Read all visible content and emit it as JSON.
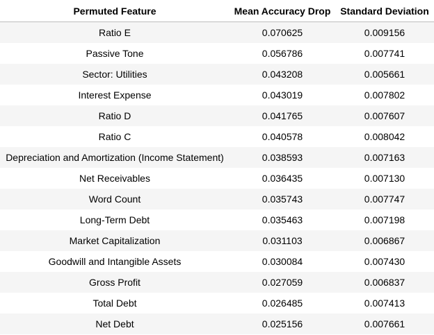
{
  "table": {
    "headers": [
      "Permuted Feature",
      "Mean Accuracy Drop",
      "Standard Deviation"
    ],
    "rows": [
      [
        "Ratio E",
        "0.070625",
        "0.009156"
      ],
      [
        "Passive Tone",
        "0.056786",
        "0.007741"
      ],
      [
        "Sector: Utilities",
        "0.043208",
        "0.005661"
      ],
      [
        "Interest Expense",
        "0.043019",
        "0.007802"
      ],
      [
        "Ratio D",
        "0.041765",
        "0.007607"
      ],
      [
        "Ratio C",
        "0.040578",
        "0.008042"
      ],
      [
        "Depreciation and Amortization (Income Statement)",
        "0.038593",
        "0.007163"
      ],
      [
        "Net Receivables",
        "0.036435",
        "0.007130"
      ],
      [
        "Word Count",
        "0.035743",
        "0.007747"
      ],
      [
        "Long-Term Debt",
        "0.035463",
        "0.007198"
      ],
      [
        "Market Capitalization",
        "0.031103",
        "0.006867"
      ],
      [
        "Goodwill and Intangible Assets",
        "0.030084",
        "0.007430"
      ],
      [
        "Gross Profit",
        "0.027059",
        "0.006837"
      ],
      [
        "Total Debt",
        "0.026485",
        "0.007413"
      ],
      [
        "Net Debt",
        "0.025156",
        "0.007661"
      ]
    ]
  },
  "colors": {
    "stripe": "#f5f5f5",
    "header_rule": "#bdbdbd"
  }
}
